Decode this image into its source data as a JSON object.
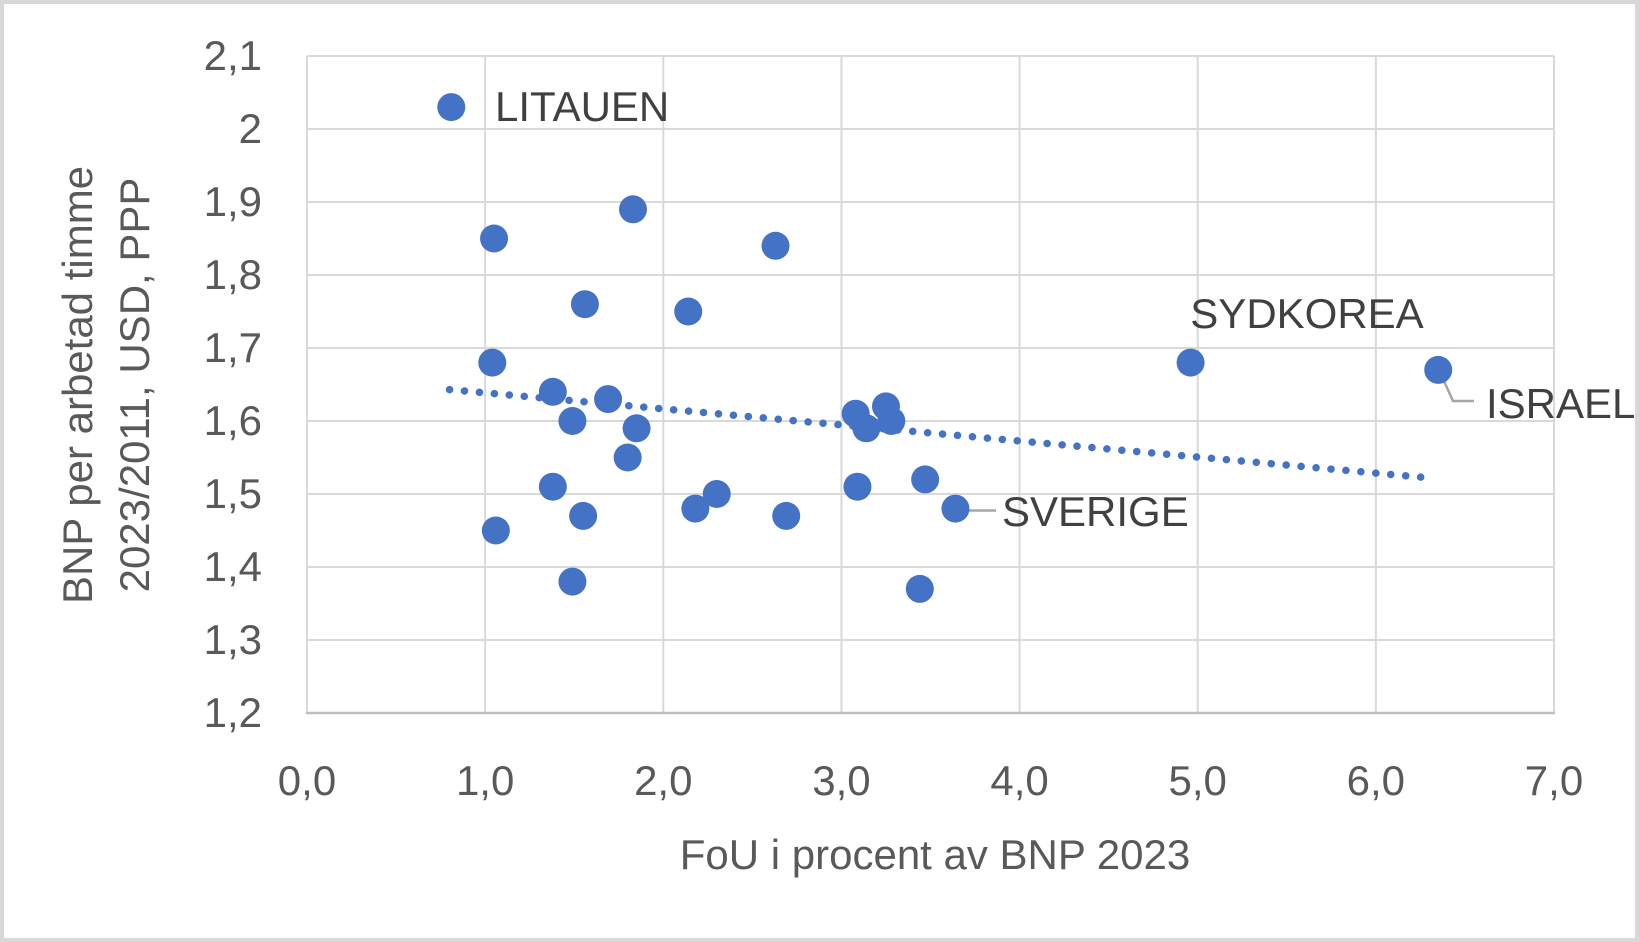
{
  "chart_data": {
    "type": "scatter",
    "title": "",
    "xlabel": "FoU i procent av BNP 2023",
    "ylabel_line1": "BNP per arbetad timme",
    "ylabel_line2": "2023/2011, USD, PPP",
    "xlim": [
      0,
      7
    ],
    "ylim": [
      1.2,
      2.1
    ],
    "grid": true,
    "legend": "none",
    "decimal_separator": ",",
    "x_ticks": [
      {
        "v": 0,
        "label": "0,0"
      },
      {
        "v": 1,
        "label": "1,0"
      },
      {
        "v": 2,
        "label": "2,0"
      },
      {
        "v": 3,
        "label": "3,0"
      },
      {
        "v": 4,
        "label": "4,0"
      },
      {
        "v": 5,
        "label": "5,0"
      },
      {
        "v": 6,
        "label": "6,0"
      },
      {
        "v": 7,
        "label": "7,0"
      }
    ],
    "y_ticks": [
      {
        "v": 2.1,
        "label": "2,1"
      },
      {
        "v": 2.0,
        "label": "2"
      },
      {
        "v": 1.9,
        "label": "1,9"
      },
      {
        "v": 1.8,
        "label": "1,8"
      },
      {
        "v": 1.7,
        "label": "1,7"
      },
      {
        "v": 1.6,
        "label": "1,6"
      },
      {
        "v": 1.5,
        "label": "1,5"
      },
      {
        "v": 1.4,
        "label": "1,4"
      },
      {
        "v": 1.3,
        "label": "1,3"
      },
      {
        "v": 1.2,
        "label": "1,2"
      }
    ],
    "points": [
      {
        "x": 0.81,
        "y": 2.03,
        "label": "LITAUEN"
      },
      {
        "x": 1.05,
        "y": 1.85
      },
      {
        "x": 1.83,
        "y": 1.89
      },
      {
        "x": 1.56,
        "y": 1.76
      },
      {
        "x": 2.14,
        "y": 1.75
      },
      {
        "x": 2.63,
        "y": 1.84
      },
      {
        "x": 1.04,
        "y": 1.68
      },
      {
        "x": 1.38,
        "y": 1.64
      },
      {
        "x": 1.69,
        "y": 1.63
      },
      {
        "x": 1.49,
        "y": 1.6
      },
      {
        "x": 1.85,
        "y": 1.59
      },
      {
        "x": 1.8,
        "y": 1.55
      },
      {
        "x": 1.38,
        "y": 1.51
      },
      {
        "x": 1.55,
        "y": 1.47
      },
      {
        "x": 1.06,
        "y": 1.45
      },
      {
        "x": 1.49,
        "y": 1.38
      },
      {
        "x": 2.18,
        "y": 1.48
      },
      {
        "x": 2.3,
        "y": 1.5
      },
      {
        "x": 2.69,
        "y": 1.47
      },
      {
        "x": 3.08,
        "y": 1.61
      },
      {
        "x": 3.14,
        "y": 1.59
      },
      {
        "x": 3.25,
        "y": 1.62
      },
      {
        "x": 3.28,
        "y": 1.6
      },
      {
        "x": 3.09,
        "y": 1.51
      },
      {
        "x": 3.47,
        "y": 1.52
      },
      {
        "x": 3.64,
        "y": 1.48,
        "label": "SVERIGE"
      },
      {
        "x": 3.44,
        "y": 1.37
      },
      {
        "x": 4.96,
        "y": 1.68,
        "label": "SYDKOREA"
      },
      {
        "x": 6.35,
        "y": 1.67,
        "label": "ISRAEL"
      }
    ],
    "annotations": {
      "litauen": "LITAUEN",
      "sydkorea": "SYDKOREA",
      "israel": "ISRAEL",
      "sverige": "SVERIGE"
    },
    "trendline": {
      "style": "dotted",
      "x1": 0.8,
      "y1": 1.643,
      "x2": 6.3,
      "y2": 1.522
    }
  },
  "colors": {
    "marker": "#4472C4",
    "trendline": "#4472C4",
    "gridline": "#D9D9D9",
    "axis_line": "#BFBFBF",
    "tick_text": "#595959",
    "axis_title_text": "#595959",
    "annotation_text": "#404040",
    "callout": "#A6A6A6",
    "background": "#FFFFFF",
    "frame_border": "#D8D8D8"
  }
}
